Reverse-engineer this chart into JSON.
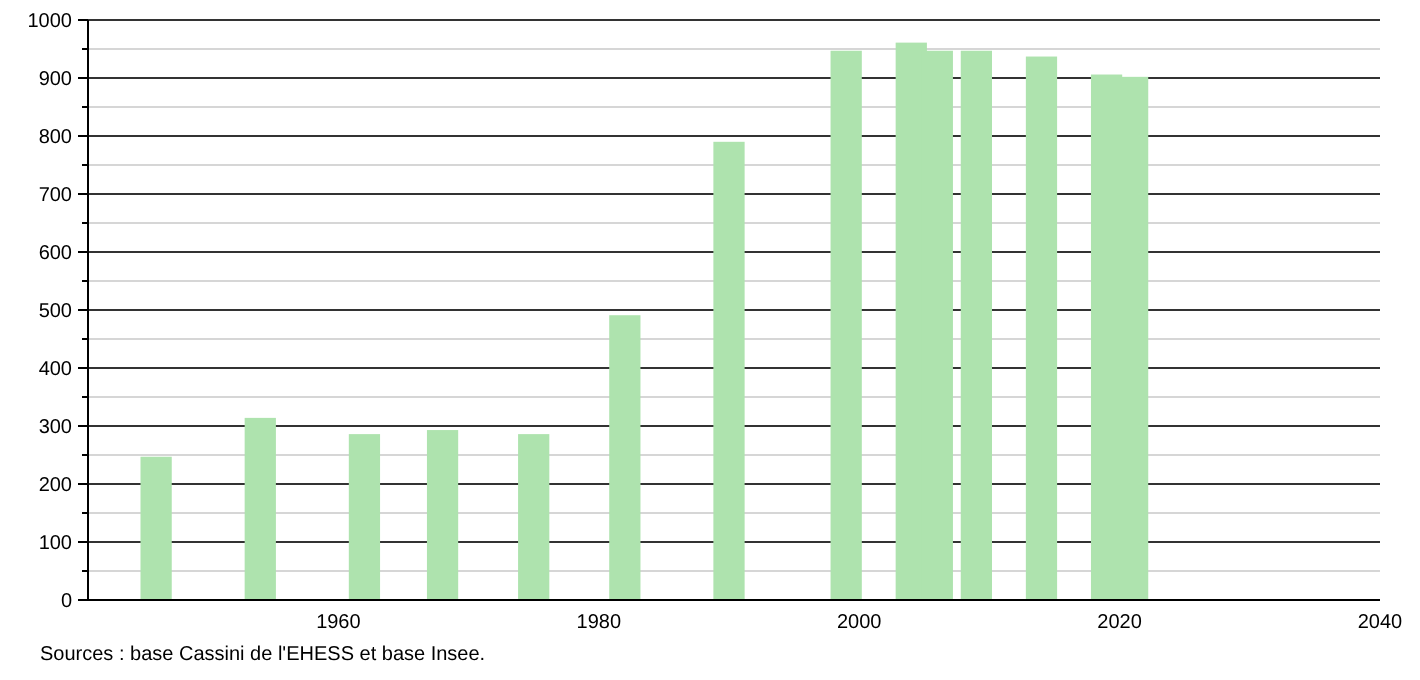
{
  "chart_data": {
    "type": "bar",
    "x": [
      1946,
      1954,
      1962,
      1968,
      1975,
      1982,
      1990,
      1999,
      2004,
      2006,
      2009,
      2014,
      2019,
      2021
    ],
    "values": [
      247,
      314,
      286,
      293,
      286,
      491,
      790,
      947,
      961,
      947,
      947,
      937,
      906,
      902
    ],
    "color": "#aee3ae",
    "xlim": [
      1940,
      2040
    ],
    "xticks": [
      1960,
      1980,
      2000,
      2020,
      2040
    ],
    "ylim": [
      0,
      1000
    ],
    "yticks": [
      0,
      {
        "value": 50,
        "label": null
      },
      100,
      {
        "value": 150,
        "label": null
      },
      200,
      {
        "value": 250,
        "label": null
      },
      300,
      {
        "value": 350,
        "label": null
      },
      400,
      {
        "value": 450,
        "label": null
      },
      500,
      {
        "value": 550,
        "label": null
      },
      600,
      {
        "value": 650,
        "label": null
      },
      700,
      {
        "value": 750,
        "label": null
      },
      800,
      {
        "value": 850,
        "label": null
      },
      900,
      {
        "value": 950,
        "label": null
      },
      1000
    ],
    "grid": true,
    "annotations": [
      "Sources : base Cassini de l'EHESS et base Insee."
    ]
  }
}
